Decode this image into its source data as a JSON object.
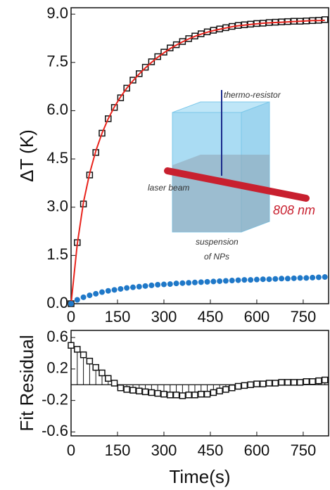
{
  "chart_data": [
    {
      "type": "scatter",
      "y_label": "ΔT (K)",
      "x": [
        0,
        20,
        40,
        60,
        80,
        100,
        120,
        140,
        160,
        180,
        200,
        220,
        240,
        260,
        280,
        300,
        320,
        340,
        360,
        380,
        400,
        420,
        440,
        460,
        480,
        500,
        520,
        540,
        560,
        580,
        600,
        620,
        640,
        660,
        680,
        700,
        720,
        740,
        760,
        780,
        800,
        820
      ],
      "series": [
        {
          "color": "#111111",
          "marker": "square",
          "mode": "markers",
          "values": [
            0,
            1.9,
            3.1,
            4.0,
            4.7,
            5.3,
            5.75,
            6.1,
            6.4,
            6.7,
            6.95,
            7.15,
            7.35,
            7.52,
            7.68,
            7.82,
            7.95,
            8.05,
            8.15,
            8.24,
            8.32,
            8.39,
            8.45,
            8.5,
            8.54,
            8.58,
            8.62,
            8.65,
            8.67,
            8.69,
            8.71,
            8.72,
            8.74,
            8.75,
            8.76,
            8.77,
            8.78,
            8.78,
            8.79,
            8.8,
            8.81,
            8.83
          ]
        },
        {
          "color": "#e8231c",
          "marker": "none",
          "mode": "line",
          "values": [
            0,
            1.85,
            3.15,
            4.05,
            4.75,
            5.3,
            5.75,
            6.12,
            6.43,
            6.7,
            6.93,
            7.14,
            7.33,
            7.5,
            7.66,
            7.8,
            7.93,
            8.04,
            8.14,
            8.23,
            8.31,
            8.38,
            8.44,
            8.49,
            8.53,
            8.57,
            8.61,
            8.64,
            8.66,
            8.68,
            8.7,
            8.72,
            8.73,
            8.74,
            8.75,
            8.76,
            8.77,
            8.78,
            8.79,
            8.8,
            8.8,
            8.81
          ]
        },
        {
          "color": "#1f78c8",
          "marker": "circle",
          "mode": "markers",
          "values": [
            0,
            0.12,
            0.2,
            0.26,
            0.31,
            0.36,
            0.4,
            0.43,
            0.46,
            0.49,
            0.51,
            0.53,
            0.55,
            0.57,
            0.59,
            0.6,
            0.61,
            0.63,
            0.64,
            0.65,
            0.66,
            0.67,
            0.68,
            0.69,
            0.7,
            0.71,
            0.72,
            0.73,
            0.74,
            0.74,
            0.75,
            0.76,
            0.76,
            0.77,
            0.78,
            0.78,
            0.79,
            0.8,
            0.8,
            0.81,
            0.82,
            0.83
          ]
        }
      ],
      "xlim": [
        0,
        832
      ],
      "xticks": [
        0,
        150,
        300,
        450,
        600,
        750
      ],
      "ylim": [
        0,
        9.2
      ],
      "yticks": [
        {
          "value": 0,
          "label": "0.0"
        },
        1.5,
        {
          "value": 3,
          "label": "3.0"
        },
        4.5,
        {
          "value": 6,
          "label": "6.0"
        },
        7.5,
        {
          "value": 9,
          "label": "9.0"
        }
      ],
      "annotations": [
        "thermo-resistor",
        "laser beam",
        "808 nm",
        "suspension",
        "of NPs"
      ]
    },
    {
      "type": "scatter",
      "y_label": "Fit Residual",
      "x_label": "Time(s)",
      "x": [
        0,
        20,
        40,
        60,
        80,
        100,
        120,
        140,
        160,
        180,
        200,
        220,
        240,
        260,
        280,
        300,
        320,
        340,
        360,
        380,
        400,
        420,
        440,
        460,
        480,
        500,
        520,
        540,
        560,
        580,
        600,
        620,
        640,
        660,
        680,
        700,
        720,
        740,
        760,
        780,
        800,
        820
      ],
      "series": [
        {
          "color": "#111111",
          "marker": "square",
          "mode": "markers",
          "stems": true,
          "values": [
            0.5,
            0.45,
            0.38,
            0.3,
            0.22,
            0.15,
            0.08,
            0.02,
            -0.04,
            -0.06,
            -0.07,
            -0.08,
            -0.09,
            -0.1,
            -0.11,
            -0.12,
            -0.13,
            -0.13,
            -0.14,
            -0.13,
            -0.13,
            -0.12,
            -0.12,
            -0.1,
            -0.08,
            -0.06,
            -0.04,
            -0.02,
            -0.01,
            0,
            0.01,
            0.01,
            0.02,
            0.02,
            0.03,
            0.03,
            0.03,
            0.03,
            0.04,
            0.04,
            0.05,
            0.06
          ]
        }
      ],
      "xlim": [
        0,
        832
      ],
      "xticks": [
        0,
        150,
        300,
        450,
        600,
        750
      ],
      "ylim": [
        -0.65,
        0.69
      ],
      "yticks": [
        0.6,
        0.2,
        -0.2,
        -0.6
      ],
      "zero_line": true
    }
  ]
}
